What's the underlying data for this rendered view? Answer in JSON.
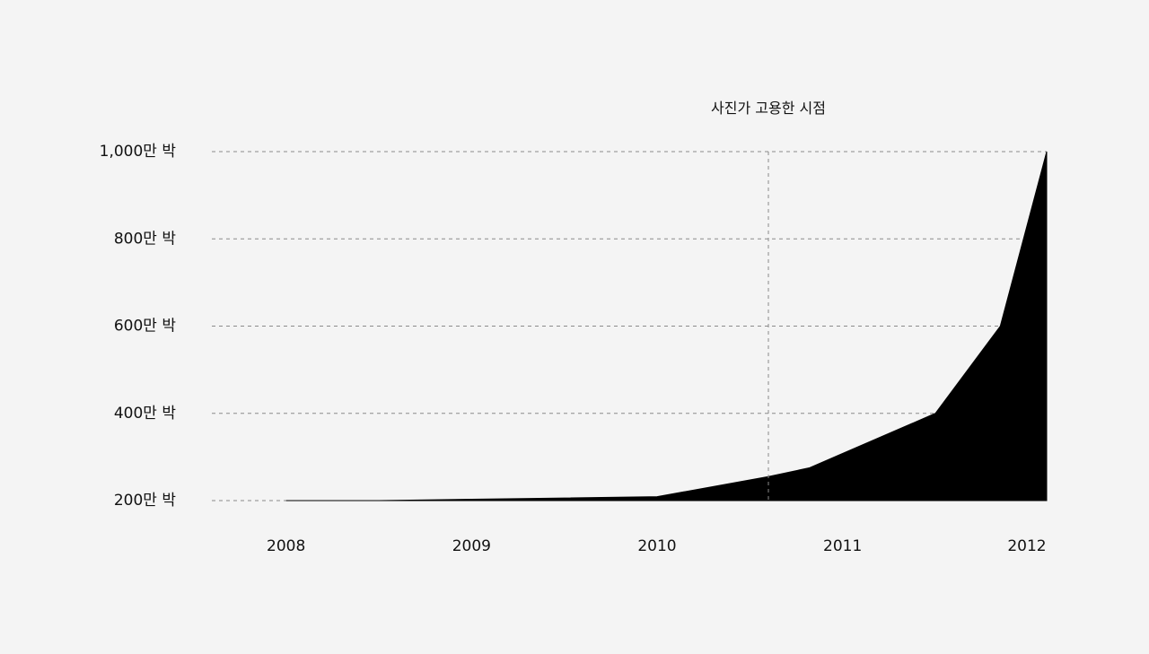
{
  "chart_data": {
    "type": "area",
    "title": "",
    "xlabel": "",
    "ylabel": "",
    "x_tick_labels": [
      {
        "value": 2008,
        "label": "2008"
      },
      {
        "value": 2009,
        "label": "2009"
      },
      {
        "value": 2010,
        "label": "2010"
      },
      {
        "value": 2011,
        "label": "2011"
      },
      {
        "value": 2012,
        "label": "2012"
      }
    ],
    "y_tick_labels": [
      {
        "value": 200,
        "label": "200만 박"
      },
      {
        "value": 400,
        "label": "400만 박"
      },
      {
        "value": 600,
        "label": "600만 박"
      },
      {
        "value": 800,
        "label": "800만 박"
      },
      {
        "value": 1000,
        "label": "1,000만 박"
      }
    ],
    "xlim": [
      2007.6,
      2012.1
    ],
    "ylim": [
      200,
      1000
    ],
    "grid": "horizontal dashed",
    "series": [
      {
        "color": "#000000",
        "points": [
          {
            "x": 2008.0,
            "y": 200
          },
          {
            "x": 2008.5,
            "y": 200
          },
          {
            "x": 2009.0,
            "y": 203
          },
          {
            "x": 2009.5,
            "y": 206
          },
          {
            "x": 2010.0,
            "y": 209
          },
          {
            "x": 2010.6,
            "y": 255
          },
          {
            "x": 2010.82,
            "y": 275
          },
          {
            "x": 2011.5,
            "y": 400
          },
          {
            "x": 2011.85,
            "y": 600
          },
          {
            "x": 2012.1,
            "y": 1000
          }
        ]
      }
    ],
    "annotations": [
      {
        "x": 2010.6,
        "label": "사진가 고용한 시점"
      }
    ]
  }
}
